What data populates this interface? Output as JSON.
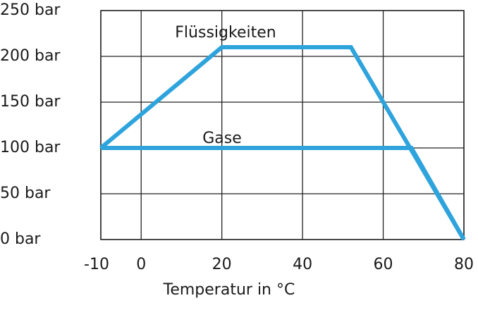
{
  "chart_data": {
    "type": "line",
    "xlabel": "Temperatur in °C",
    "xlim": [
      -10,
      80
    ],
    "xticks": [
      -10,
      0,
      20,
      40,
      60,
      80
    ],
    "ylim": [
      0,
      250
    ],
    "yticks": [
      {
        "value": 0,
        "label": "0 bar"
      },
      {
        "value": 50,
        "label": "50 bar"
      },
      {
        "value": 100,
        "label": "100 bar"
      },
      {
        "value": 150,
        "label": "150 bar"
      },
      {
        "value": 200,
        "label": "200 bar"
      },
      {
        "value": 250,
        "label": "250 bar"
      }
    ],
    "grid": true,
    "series": [
      {
        "name": "Flüssigkeiten",
        "color": "#2ea3dc",
        "x": [
          -10,
          20,
          52,
          80
        ],
        "values": [
          100,
          210,
          210,
          0
        ]
      },
      {
        "name": "Gase",
        "color": "#2ea3dc",
        "x": [
          -10,
          67,
          80
        ],
        "values": [
          100,
          100,
          0
        ]
      }
    ]
  }
}
